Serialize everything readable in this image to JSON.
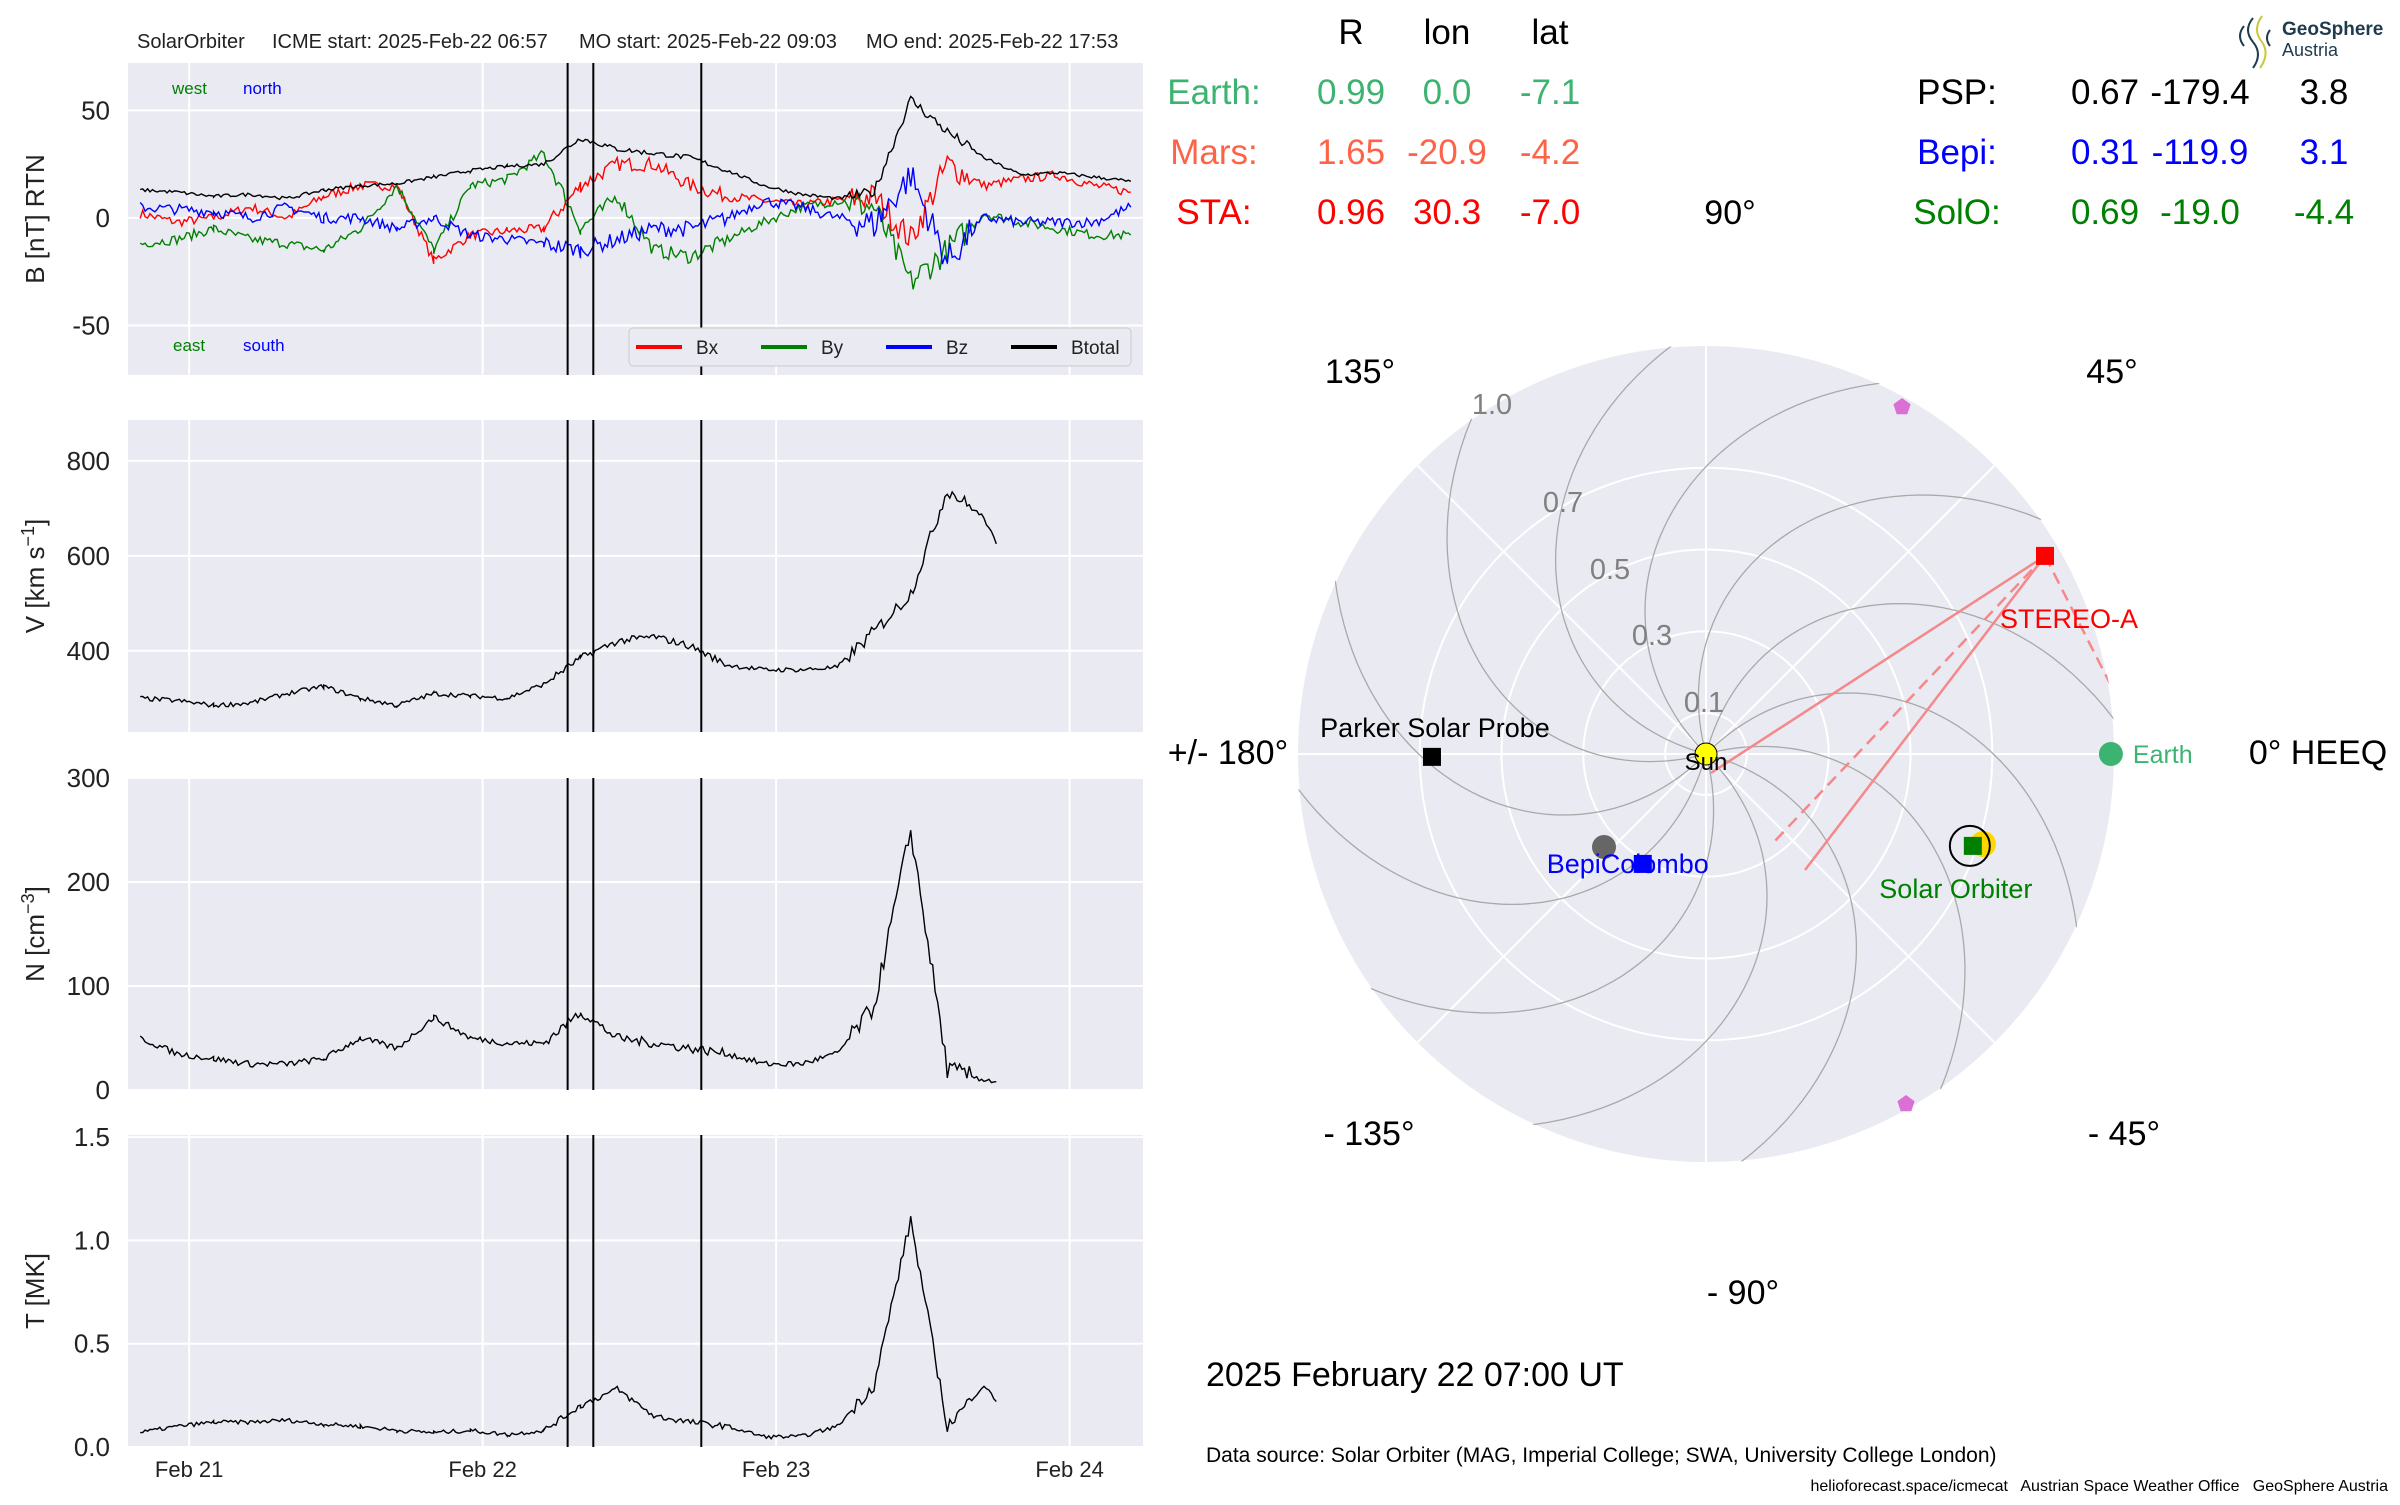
{
  "title": {
    "spacecraft": "SolarOrbiter",
    "icme_start": "ICME start: 2025-Feb-22 06:57",
    "mo_start": "MO start: 2025-Feb-22 09:03",
    "mo_end": "MO end: 2025-Feb-22 17:53"
  },
  "annotations": {
    "west": "west",
    "north": "north",
    "east": "east",
    "south": "south"
  },
  "chart_data": [
    {
      "type": "line",
      "ylabel": "B [nT] RTN",
      "ylim": [
        -73,
        72
      ],
      "yticks": [
        "50",
        "0",
        "-50"
      ],
      "ytick_values": [
        50,
        0,
        -50
      ],
      "xlabel": "",
      "x_unit": "hours since 2025-02-21 00:00 UT",
      "xlim": [
        -5,
        78
      ],
      "event_lines_hours": [
        30.95,
        33.05,
        41.88
      ],
      "legend": "bottom-right",
      "x": [
        -4,
        -1,
        2,
        5,
        8,
        11,
        14,
        17,
        20,
        23,
        26,
        29,
        32,
        35,
        38,
        41,
        44,
        47,
        50,
        53,
        56,
        59,
        62,
        65,
        68,
        71,
        74,
        77
      ],
      "series": [
        {
          "name": "Bx",
          "color": "#ff0000",
          "values": [
            2,
            -2,
            0,
            5,
            0,
            10,
            15,
            15,
            -20,
            -8,
            -6,
            -5,
            15,
            25,
            25,
            15,
            10,
            8,
            6,
            8,
            10,
            -10,
            25,
            15,
            18,
            20,
            15,
            12
          ]
        },
        {
          "name": "By",
          "color": "#008000",
          "values": [
            -12,
            -10,
            -5,
            -10,
            -12,
            -15,
            -5,
            15,
            -15,
            15,
            18,
            30,
            -5,
            10,
            -15,
            -18,
            -10,
            -2,
            5,
            8,
            5,
            -30,
            -15,
            2,
            -2,
            -5,
            -8,
            -8
          ]
        },
        {
          "name": "Bz",
          "color": "#0000ff",
          "values": [
            5,
            4,
            3,
            0,
            5,
            0,
            0,
            -5,
            0,
            -8,
            -10,
            -12,
            -15,
            -10,
            -5,
            -5,
            0,
            8,
            5,
            0,
            -3,
            20,
            -20,
            0,
            -2,
            -2,
            -2,
            5
          ]
        },
        {
          "name": "Btotal",
          "color": "#000000",
          "values": [
            13,
            12,
            10,
            11,
            9,
            13,
            15,
            16,
            19,
            22,
            24,
            25,
            37,
            32,
            30,
            28,
            22,
            15,
            11,
            9,
            12,
            55,
            40,
            28,
            20,
            21,
            19,
            17
          ]
        }
      ]
    },
    {
      "type": "line",
      "ylabel": "V [km s",
      "ylabel_sup": "−1",
      "ylabel_end": "]",
      "ylim": [
        229,
        886
      ],
      "yticks": [
        "800",
        "600",
        "400"
      ],
      "ytick_values": [
        800,
        600,
        400
      ],
      "x": [
        -4,
        -1,
        2,
        5,
        8,
        11,
        14,
        17,
        20,
        23,
        26,
        29,
        32,
        35,
        38,
        41,
        44,
        47,
        50,
        53,
        56,
        59,
        62,
        65,
        66
      ],
      "series": [
        {
          "name": "V",
          "color": "#000000",
          "values": [
            300,
            295,
            285,
            290,
            310,
            325,
            300,
            285,
            310,
            305,
            300,
            330,
            385,
            420,
            430,
            410,
            370,
            360,
            360,
            365,
            440,
            520,
            740,
            680,
            625
          ]
        }
      ]
    },
    {
      "type": "line",
      "ylabel": "N [cm",
      "ylabel_sup": "−3",
      "ylabel_end": "]",
      "ylim": [
        0,
        300
      ],
      "yticks": [
        "300",
        "200",
        "100",
        "0"
      ],
      "ytick_values": [
        300,
        200,
        100,
        0
      ],
      "x": [
        -4,
        -1,
        2,
        5,
        8,
        11,
        14,
        17,
        20,
        23,
        26,
        29,
        32,
        35,
        38,
        41,
        44,
        47,
        50,
        53,
        56,
        59,
        62,
        65,
        66
      ],
      "series": [
        {
          "name": "N",
          "color": "#000000",
          "values": [
            50,
            35,
            30,
            25,
            25,
            30,
            50,
            40,
            70,
            50,
            45,
            45,
            75,
            50,
            45,
            40,
            35,
            25,
            25,
            35,
            80,
            250,
            20,
            10,
            8
          ]
        }
      ]
    },
    {
      "type": "line",
      "ylabel": "T [MK]",
      "ylim": [
        0,
        1.51
      ],
      "yticks": [
        "1.5",
        "1.0",
        "0.5",
        "0.0"
      ],
      "ytick_values": [
        1.5,
        1.0,
        0.5,
        0.0
      ],
      "xticks": [
        "Feb 21",
        "Feb 22",
        "Feb 23",
        "Feb 24"
      ],
      "xtick_values": [
        0,
        24,
        48,
        72
      ],
      "x": [
        -4,
        -1,
        2,
        5,
        8,
        11,
        14,
        17,
        20,
        23,
        26,
        29,
        32,
        35,
        38,
        41,
        44,
        47,
        50,
        53,
        56,
        59,
        62,
        65,
        66
      ],
      "series": [
        {
          "name": "T",
          "color": "#000000",
          "values": [
            0.07,
            0.1,
            0.12,
            0.12,
            0.13,
            0.11,
            0.1,
            0.08,
            0.07,
            0.08,
            0.06,
            0.08,
            0.2,
            0.28,
            0.15,
            0.12,
            0.1,
            0.05,
            0.05,
            0.1,
            0.3,
            1.1,
            0.1,
            0.3,
            0.22
          ]
        }
      ]
    },
    {
      "type": "polar",
      "frame": "HEEQ",
      "rlim": [
        0,
        1.0
      ],
      "rticks": [
        "0.1",
        "0.3",
        "0.5",
        "0.7",
        "1.0"
      ],
      "rtick_values": [
        0.1,
        0.3,
        0.5,
        0.7,
        1.0
      ],
      "angle_labels": {
        "a90": "90°",
        "a45": "45°",
        "a0": "0° HEEQ",
        "am45": "- 45°",
        "am90": "- 90°",
        "am135": "- 135°",
        "a180": "+/- 180°",
        "a135": "135°"
      },
      "bodies": [
        {
          "name": "Sun",
          "label": "Sun",
          "r": 0,
          "lon": 0,
          "color": "#ffff00",
          "marker": "circle"
        },
        {
          "name": "Earth",
          "label": "Earth",
          "r": 0.99,
          "lon": 0.0,
          "color": "#3cb371",
          "marker": "circle"
        },
        {
          "name": "STEREO-A",
          "label": "STEREO-A",
          "r": 0.96,
          "lon": 30.3,
          "color": "#ff0000",
          "marker": "square"
        },
        {
          "name": "Parker Solar Probe",
          "label": "Parker Solar Probe",
          "r": 0.67,
          "lon": -179.4,
          "color": "#000000",
          "marker": "square"
        },
        {
          "name": "BepiColombo",
          "label": "BepiColombo",
          "r": 0.31,
          "lon": -119.9,
          "color": "#0000ff",
          "marker": "square"
        },
        {
          "name": "Solar Orbiter",
          "label": "Solar Orbiter",
          "r": 0.69,
          "lon": -19.0,
          "color": "#008000",
          "marker": "square"
        }
      ]
    }
  ],
  "position_table": {
    "headers": {
      "r": "R",
      "lon": "lon",
      "lat": "lat"
    },
    "left": [
      {
        "name": "Earth:",
        "r": "0.99",
        "lon": "0.0",
        "lat": "-7.1",
        "color": "#3cb371"
      },
      {
        "name": "Mars:",
        "r": "1.65",
        "lon": "-20.9",
        "lat": "-4.2",
        "color": "#ff6347"
      },
      {
        "name": "STA:",
        "r": "0.96",
        "lon": "30.3",
        "lat": "-7.0",
        "color": "#ff0000"
      }
    ],
    "right": [
      {
        "name": "PSP:",
        "r": "0.67",
        "lon": "-179.4",
        "lat": "3.8",
        "color": "#000000"
      },
      {
        "name": "Bepi:",
        "r": "0.31",
        "lon": "-119.9",
        "lat": "3.1",
        "color": "#0000ff"
      },
      {
        "name": "SolO:",
        "r": "0.69",
        "lon": "-19.0",
        "lat": "-4.4",
        "color": "#008000"
      }
    ]
  },
  "logo": {
    "line1": "GeoSphere",
    "line2": "Austria"
  },
  "timestamp": "2025 February 22  07:00 UT",
  "data_source": "Data source: Solar Orbiter (MAG, Imperial College; SWA, University College London)",
  "footer": "helioforecast.space/icmecat   Austrian Space Weather Office   GeoSphere Austria"
}
